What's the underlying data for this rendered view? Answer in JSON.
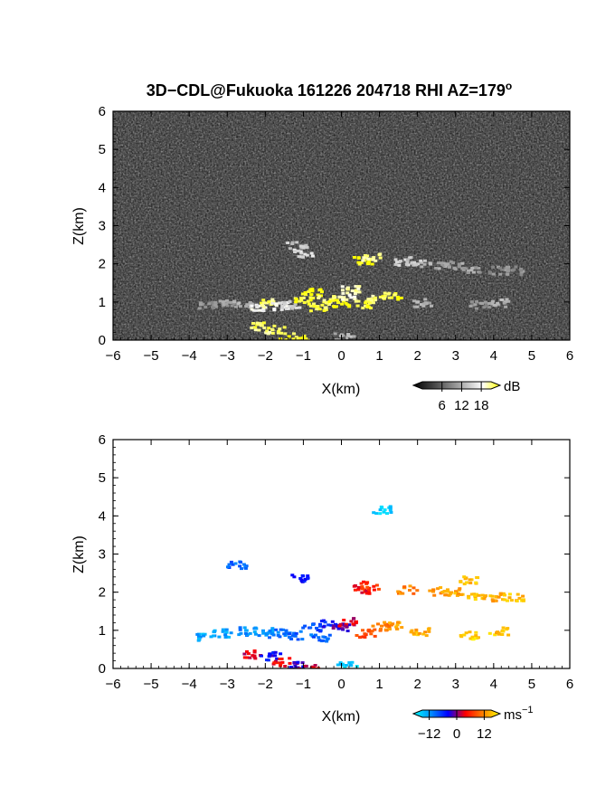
{
  "title": "3D−CDL@Fukuoka 161226 204718 RHI AZ=179",
  "title_superscript": "o",
  "chart_data": [
    {
      "type": "heatmap",
      "name": "reflectivity-rhi",
      "xlabel": "X(km)",
      "ylabel": "Z(km)",
      "xlim": [
        -6,
        6
      ],
      "ylim": [
        0,
        6
      ],
      "xticks": [
        "−6",
        "−5",
        "−4",
        "−3",
        "−2",
        "−1",
        "0",
        "1",
        "2",
        "3",
        "4",
        "5",
        "6"
      ],
      "yticks": [
        "0",
        "1",
        "2",
        "3",
        "4",
        "5",
        "6"
      ],
      "background": "noise",
      "colorbar": {
        "unit": "dB",
        "ticks": [
          "6",
          "12",
          "18"
        ],
        "range": [
          0,
          21
        ],
        "colors": [
          "#000000",
          "#3a3a3a",
          "#7a7a7a",
          "#bbbbbb",
          "#ffffff",
          "#ffff00"
        ]
      },
      "echoes": [
        {
          "x": -3.6,
          "z": 0.95,
          "value": 10
        },
        {
          "x": -3.1,
          "z": 0.98,
          "value": 11
        },
        {
          "x": -2.6,
          "z": 1.0,
          "value": 12
        },
        {
          "x": -2.2,
          "z": 0.85,
          "value": 16
        },
        {
          "x": -2.0,
          "z": 1.0,
          "value": 19
        },
        {
          "x": -1.7,
          "z": 0.92,
          "value": 16
        },
        {
          "x": -1.4,
          "z": 0.95,
          "value": 14
        },
        {
          "x": -1.2,
          "z": 2.5,
          "value": 13
        },
        {
          "x": -1.05,
          "z": 2.3,
          "value": 15
        },
        {
          "x": -1.0,
          "z": 1.05,
          "value": 20
        },
        {
          "x": -0.8,
          "z": 1.3,
          "value": 21
        },
        {
          "x": -0.6,
          "z": 0.9,
          "value": 20
        },
        {
          "x": -0.4,
          "z": 1.1,
          "value": 19
        },
        {
          "x": -0.1,
          "z": 1.0,
          "value": 21
        },
        {
          "x": 0.1,
          "z": 1.2,
          "value": 17
        },
        {
          "x": 0.2,
          "z": 1.35,
          "value": 18
        },
        {
          "x": 0.55,
          "z": 2.1,
          "value": 21
        },
        {
          "x": 0.75,
          "z": 2.2,
          "value": 19
        },
        {
          "x": 0.6,
          "z": 0.95,
          "value": 20
        },
        {
          "x": 0.9,
          "z": 1.1,
          "value": 19
        },
        {
          "x": 1.3,
          "z": 1.2,
          "value": 20
        },
        {
          "x": 1.6,
          "z": 2.1,
          "value": 14
        },
        {
          "x": 1.9,
          "z": 2.05,
          "value": 13
        },
        {
          "x": 2.1,
          "z": 1.0,
          "value": 12
        },
        {
          "x": 2.5,
          "z": 2.0,
          "value": 12
        },
        {
          "x": 2.9,
          "z": 2.0,
          "value": 11
        },
        {
          "x": 3.4,
          "z": 1.9,
          "value": 11
        },
        {
          "x": 3.6,
          "z": 0.95,
          "value": 10
        },
        {
          "x": 4.1,
          "z": 1.0,
          "value": 12
        },
        {
          "x": 4.1,
          "z": 1.85,
          "value": 10
        },
        {
          "x": 4.5,
          "z": 1.85,
          "value": 10
        },
        {
          "x": -2.2,
          "z": 0.4,
          "value": 19
        },
        {
          "x": -1.8,
          "z": 0.3,
          "value": 19
        },
        {
          "x": -1.4,
          "z": 0.1,
          "value": 20
        },
        {
          "x": -1.0,
          "z": 0.05,
          "value": 20
        },
        {
          "x": 0.05,
          "z": 0.1,
          "value": 12
        }
      ]
    },
    {
      "type": "heatmap",
      "name": "doppler-velocity-rhi",
      "xlabel": "X(km)",
      "ylabel": "Z(km)",
      "xlim": [
        -6,
        6
      ],
      "ylim": [
        0,
        6
      ],
      "xticks": [
        "−6",
        "−5",
        "−4",
        "−3",
        "−2",
        "−1",
        "0",
        "1",
        "2",
        "3",
        "4",
        "5",
        "6"
      ],
      "yticks": [
        "0",
        "1",
        "2",
        "3",
        "4",
        "5",
        "6"
      ],
      "colorbar": {
        "unit": "ms",
        "unit_superscript": "−1",
        "ticks": [
          "−12",
          "0",
          "12"
        ],
        "tick_values": [
          -12,
          0,
          12
        ],
        "range": [
          -15,
          15
        ],
        "colors": [
          "#00ffff",
          "#0090ff",
          "#0000ff",
          "#ff0000",
          "#ff8000",
          "#ffff00"
        ]
      },
      "echoes": [
        {
          "x": -3.6,
          "z": 0.85,
          "value": -10
        },
        {
          "x": -3.2,
          "z": 0.95,
          "value": -10
        },
        {
          "x": -2.8,
          "z": 2.75,
          "value": -7
        },
        {
          "x": -2.5,
          "z": 1.0,
          "value": -9
        },
        {
          "x": -2.1,
          "z": 1.0,
          "value": -9
        },
        {
          "x": -1.7,
          "z": 0.95,
          "value": -8
        },
        {
          "x": -1.3,
          "z": 0.9,
          "value": -7
        },
        {
          "x": -1.1,
          "z": 2.4,
          "value": -4
        },
        {
          "x": -0.8,
          "z": 1.1,
          "value": -6
        },
        {
          "x": -0.6,
          "z": 0.85,
          "value": -7
        },
        {
          "x": -0.3,
          "z": 1.2,
          "value": -4
        },
        {
          "x": -0.05,
          "z": 1.1,
          "value": -1
        },
        {
          "x": 0.15,
          "z": 1.25,
          "value": 2
        },
        {
          "x": 0.1,
          "z": 0.1,
          "value": -12
        },
        {
          "x": 0.55,
          "z": 2.1,
          "value": 3
        },
        {
          "x": 0.7,
          "z": 2.2,
          "value": 5
        },
        {
          "x": 0.6,
          "z": 0.95,
          "value": 6
        },
        {
          "x": 1.0,
          "z": 1.1,
          "value": 9
        },
        {
          "x": 1.3,
          "z": 1.15,
          "value": 10
        },
        {
          "x": 1.7,
          "z": 2.1,
          "value": 9
        },
        {
          "x": 2.0,
          "z": 1.0,
          "value": 11
        },
        {
          "x": 2.5,
          "z": 2.05,
          "value": 10
        },
        {
          "x": 2.9,
          "z": 2.05,
          "value": 11
        },
        {
          "x": 3.3,
          "z": 2.35,
          "value": 12
        },
        {
          "x": 3.5,
          "z": 1.95,
          "value": 12
        },
        {
          "x": 3.3,
          "z": 0.9,
          "value": 13
        },
        {
          "x": 4.1,
          "z": 1.0,
          "value": 12
        },
        {
          "x": 4.1,
          "z": 1.9,
          "value": 11
        },
        {
          "x": 4.5,
          "z": 1.9,
          "value": 12
        },
        {
          "x": 1.0,
          "z": 4.2,
          "value": -12
        },
        {
          "x": -2.4,
          "z": 0.4,
          "value": 2
        },
        {
          "x": -1.9,
          "z": 0.35,
          "value": -3
        },
        {
          "x": -1.6,
          "z": 0.2,
          "value": 3
        },
        {
          "x": -1.2,
          "z": 0.1,
          "value": -2
        },
        {
          "x": -0.9,
          "z": 0.03,
          "value": 2
        }
      ]
    }
  ]
}
